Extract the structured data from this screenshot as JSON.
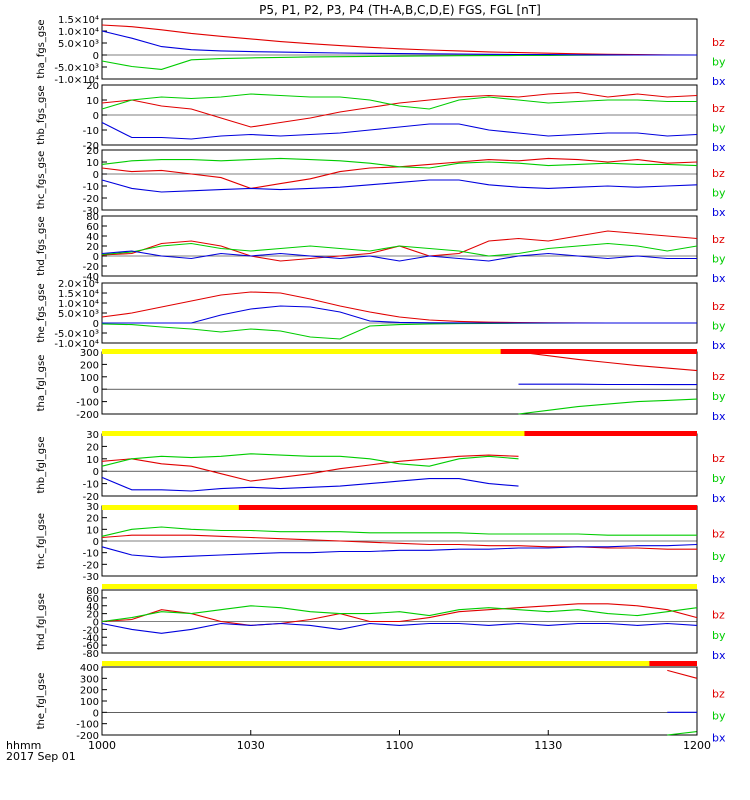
{
  "chart_data": {
    "type": "line",
    "title": "P5, P1, P2, P3, P4 (TH-A,B,C,D,E) FGS, FGL [nT]",
    "time_axis": {
      "ticks": [
        "1000",
        "1030",
        "1100",
        "1130",
        "1200"
      ],
      "label": "hhmm",
      "date": "2017 Sep 01"
    },
    "series_colors": {
      "bz": "#e00000",
      "by": "#00cc00",
      "bx": "#0000dd"
    },
    "legend_labels": [
      "bz",
      "by",
      "bx"
    ],
    "panels": [
      {
        "ylabel": "tha_fgs_gse",
        "yticks": [
          "-1.0×10⁴",
          "-5.0×10³",
          "0",
          "5.0×10³",
          "1.0×10⁴",
          "1.5×10⁴"
        ],
        "series": [
          {
            "name": "bz",
            "values": [
              12500,
              11800,
              10500,
              9000,
              7800,
              6700,
              5600,
              4700,
              3900,
              3200,
              2600,
              2100,
              1700,
              1300,
              1000,
              750,
              500,
              300,
              150,
              50,
              0
            ]
          },
          {
            "name": "by",
            "values": [
              -2500,
              -4800,
              -6000,
              -2000,
              -1500,
              -1200,
              -1000,
              -800,
              -700,
              -600,
              -500,
              -400,
              -300,
              -250,
              -200,
              -150,
              -100,
              -50,
              0,
              0,
              0
            ]
          },
          {
            "name": "bx",
            "values": [
              10000,
              7000,
              3500,
              2200,
              1700,
              1400,
              1200,
              1000,
              850,
              700,
              600,
              500,
              400,
              300,
              200,
              150,
              100,
              50,
              0,
              0,
              0
            ]
          }
        ]
      },
      {
        "ylabel": "thb_fgs_gse",
        "yticks": [
          "-20",
          "-10",
          "0",
          "10",
          "20"
        ],
        "series": [
          {
            "name": "bz",
            "values": [
              8,
              10,
              6,
              4,
              -2,
              -8,
              -5,
              -2,
              2,
              5,
              8,
              10,
              12,
              13,
              12,
              14,
              15,
              12,
              14,
              12,
              13
            ]
          },
          {
            "name": "by",
            "values": [
              4,
              10,
              12,
              11,
              12,
              14,
              13,
              12,
              12,
              10,
              6,
              4,
              10,
              12,
              10,
              8,
              9,
              10,
              10,
              9,
              9
            ]
          },
          {
            "name": "bx",
            "values": [
              -5,
              -15,
              -15,
              -16,
              -14,
              -13,
              -14,
              -13,
              -12,
              -10,
              -8,
              -6,
              -6,
              -10,
              -12,
              -14,
              -13,
              -12,
              -12,
              -14,
              -13
            ]
          }
        ]
      },
      {
        "ylabel": "thc_fgs_gse",
        "yticks": [
          "-30",
          "-20",
          "-10",
          "0",
          "10",
          "20"
        ],
        "series": [
          {
            "name": "bz",
            "values": [
              5,
              2,
              3,
              0,
              -3,
              -12,
              -8,
              -4,
              2,
              5,
              6,
              8,
              10,
              12,
              11,
              13,
              12,
              10,
              12,
              9,
              10
            ]
          },
          {
            "name": "by",
            "values": [
              8,
              11,
              12,
              12,
              11,
              12,
              13,
              12,
              11,
              9,
              6,
              5,
              9,
              10,
              9,
              7,
              8,
              9,
              8,
              8,
              7
            ]
          },
          {
            "name": "bx",
            "values": [
              -5,
              -12,
              -15,
              -14,
              -13,
              -12,
              -13,
              -12,
              -11,
              -9,
              -7,
              -5,
              -5,
              -9,
              -11,
              -12,
              -11,
              -10,
              -11,
              -10,
              -9
            ]
          }
        ]
      },
      {
        "ylabel": "thd_fgs_gse",
        "yticks": [
          "-40",
          "-20",
          "0",
          "20",
          "40",
          "60",
          "80"
        ],
        "series": [
          {
            "name": "bz",
            "values": [
              2,
              5,
              25,
              30,
              20,
              0,
              -10,
              -5,
              0,
              5,
              20,
              0,
              5,
              30,
              35,
              30,
              40,
              50,
              45,
              40,
              35
            ]
          },
          {
            "name": "by",
            "values": [
              3,
              8,
              20,
              25,
              15,
              10,
              15,
              20,
              15,
              10,
              20,
              15,
              10,
              0,
              5,
              15,
              20,
              25,
              20,
              10,
              20
            ]
          },
          {
            "name": "bx",
            "values": [
              5,
              10,
              0,
              -5,
              5,
              0,
              5,
              0,
              -5,
              0,
              -10,
              0,
              -5,
              -10,
              0,
              5,
              0,
              -5,
              0,
              -5,
              -5
            ]
          }
        ]
      },
      {
        "ylabel": "the_fgs_gse",
        "yticks": [
          "-1.0×10⁴",
          "-5.0×10³",
          "0",
          "5.0×10³",
          "1.0×10⁴",
          "1.5×10⁴",
          "2.0×10⁴"
        ],
        "series": [
          {
            "name": "bz",
            "values": [
              3000,
              5000,
              8000,
              11000,
              14000,
              15500,
              15000,
              12000,
              8500,
              5500,
              3000,
              1500,
              800,
              400,
              200,
              100,
              50,
              0,
              0,
              0,
              0
            ]
          },
          {
            "name": "by",
            "values": [
              -500,
              -800,
              -2000,
              -3000,
              -4500,
              -3000,
              -4000,
              -7000,
              -8000,
              -1500,
              -800,
              -500,
              -300,
              -200,
              -100,
              -50,
              0,
              0,
              0,
              0,
              0
            ]
          },
          {
            "name": "bx",
            "values": [
              0,
              0,
              0,
              0,
              4000,
              7000,
              8500,
              8000,
              5500,
              1000,
              300,
              100,
              50,
              0,
              0,
              0,
              0,
              0,
              0,
              0,
              0
            ]
          }
        ]
      },
      {
        "ylabel": "tha_fgl_gse",
        "yticks": [
          "-200",
          "-100",
          "0",
          "100",
          "200",
          "300"
        ],
        "series": [
          {
            "name": "bz",
            "values": [
              null,
              null,
              null,
              null,
              null,
              null,
              null,
              null,
              null,
              null,
              null,
              null,
              null,
              null,
              300,
              270,
              240,
              215,
              190,
              170,
              150
            ]
          },
          {
            "name": "by",
            "values": [
              null,
              null,
              null,
              null,
              null,
              null,
              null,
              null,
              null,
              null,
              null,
              null,
              null,
              null,
              -200,
              -170,
              -140,
              -120,
              -100,
              -90,
              -80
            ]
          },
          {
            "name": "bx",
            "values": [
              null,
              null,
              null,
              null,
              null,
              null,
              null,
              null,
              null,
              null,
              null,
              null,
              null,
              null,
              40,
              40,
              40,
              38,
              38,
              37,
              37
            ]
          }
        ]
      },
      {
        "ylabel": "thb_fgl_gse",
        "yticks": [
          "-20",
          "-10",
          "0",
          "10",
          "20",
          "30"
        ],
        "series": [
          {
            "name": "bz",
            "values": [
              8,
              10,
              6,
              4,
              -2,
              -8,
              -5,
              -2,
              2,
              5,
              8,
              10,
              12,
              13,
              12,
              null,
              null,
              null,
              null,
              null,
              null
            ]
          },
          {
            "name": "by",
            "values": [
              4,
              10,
              12,
              11,
              12,
              14,
              13,
              12,
              12,
              10,
              6,
              4,
              10,
              12,
              10,
              null,
              null,
              null,
              null,
              null,
              null
            ]
          },
          {
            "name": "bx",
            "values": [
              -5,
              -15,
              -15,
              -16,
              -14,
              -13,
              -14,
              -13,
              -12,
              -10,
              -8,
              -6,
              -6,
              -10,
              -12,
              null,
              null,
              null,
              null,
              null,
              null
            ]
          }
        ]
      },
      {
        "ylabel": "thc_fgl_gse",
        "yticks": [
          "-30",
          "-20",
          "-10",
          "0",
          "10",
          "20",
          "30"
        ],
        "series": [
          {
            "name": "bz",
            "values": [
              3,
              5,
              5,
              5,
              4,
              3,
              2,
              1,
              0,
              -1,
              -2,
              -3,
              -3,
              -4,
              -4,
              -5,
              -5,
              -6,
              -6,
              -7,
              -7
            ]
          },
          {
            "name": "by",
            "values": [
              4,
              10,
              12,
              10,
              9,
              9,
              8,
              8,
              8,
              7,
              7,
              7,
              7,
              6,
              6,
              6,
              6,
              5,
              5,
              5,
              5
            ]
          },
          {
            "name": "bx",
            "values": [
              -5,
              -12,
              -14,
              -13,
              -12,
              -11,
              -10,
              -10,
              -9,
              -9,
              -8,
              -8,
              -7,
              -7,
              -6,
              -6,
              -5,
              -5,
              -4,
              -4,
              -3
            ]
          }
        ]
      },
      {
        "ylabel": "thd_fgl_gse",
        "yticks": [
          "-80",
          "-60",
          "-40",
          "-20",
          "0",
          "20",
          "40",
          "60",
          "80"
        ],
        "series": [
          {
            "name": "bz",
            "values": [
              0,
              5,
              30,
              20,
              0,
              -10,
              -5,
              5,
              20,
              0,
              0,
              10,
              25,
              30,
              35,
              40,
              45,
              45,
              40,
              30,
              10
            ]
          },
          {
            "name": "by",
            "values": [
              0,
              10,
              25,
              20,
              30,
              40,
              35,
              25,
              20,
              20,
              25,
              15,
              30,
              35,
              30,
              25,
              30,
              20,
              15,
              25,
              35
            ]
          },
          {
            "name": "bx",
            "values": [
              -5,
              -20,
              -30,
              -20,
              -5,
              -10,
              -5,
              -10,
              -20,
              -5,
              -10,
              -5,
              -5,
              -10,
              -5,
              -10,
              -5,
              -5,
              -10,
              -5,
              -10
            ]
          }
        ]
      },
      {
        "ylabel": "the_fgl_gse",
        "yticks": [
          "-200",
          "-100",
          "0",
          "100",
          "200",
          "300",
          "400"
        ],
        "series": [
          {
            "name": "bz",
            "values": [
              null,
              null,
              null,
              null,
              null,
              null,
              null,
              null,
              null,
              null,
              null,
              null,
              null,
              null,
              null,
              null,
              null,
              null,
              null,
              370,
              300
            ]
          },
          {
            "name": "by",
            "values": [
              null,
              null,
              null,
              null,
              null,
              null,
              null,
              null,
              null,
              null,
              null,
              null,
              null,
              null,
              null,
              null,
              null,
              null,
              null,
              -200,
              -170
            ]
          },
          {
            "name": "bx",
            "values": [
              null,
              null,
              null,
              null,
              null,
              null,
              null,
              null,
              null,
              null,
              null,
              null,
              null,
              null,
              null,
              null,
              null,
              null,
              null,
              0,
              0
            ]
          }
        ]
      }
    ]
  }
}
